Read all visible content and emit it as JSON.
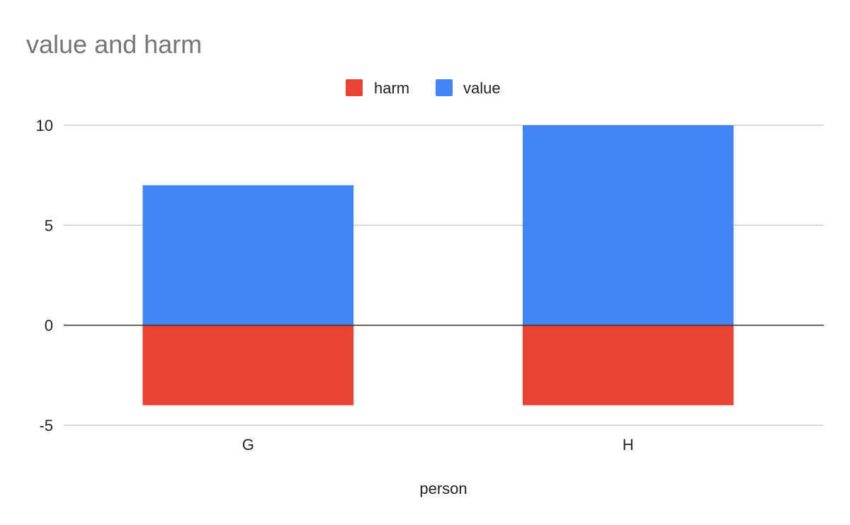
{
  "chart_data": {
    "type": "bar",
    "stacked": true,
    "title": "value and harm",
    "xlabel": "person",
    "ylabel": "",
    "categories": [
      "G",
      "H"
    ],
    "series": [
      {
        "name": "harm",
        "color": "#ea4335",
        "values": [
          -4,
          -4
        ]
      },
      {
        "name": "value",
        "color": "#4285f4",
        "values": [
          7,
          10
        ]
      }
    ],
    "ylim": [
      -5,
      10
    ],
    "yticks": [
      10,
      5,
      0,
      -5
    ],
    "grid": true,
    "legend_position": "top"
  }
}
